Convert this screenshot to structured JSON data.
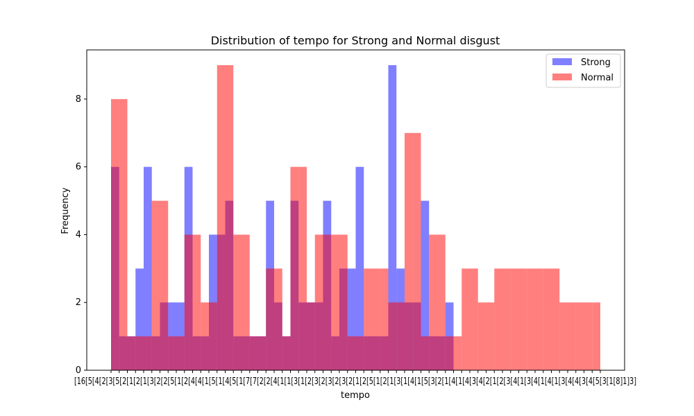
{
  "chart_data": {
    "type": "bar",
    "title": "Distribution of tempo for Strong and Normal disgust",
    "xlabel": "tempo",
    "ylabel": "Frequency",
    "ylim": [
      0,
      9.45
    ],
    "yticks": [
      0,
      2,
      4,
      6,
      8
    ],
    "xticklabel_text": "[16[5[4[2[3[5[2[1[2[1[3[2[2[5[1[2[4[4[1[5[1[4[5[1[7[7[2[2[4[1[1[3[1[2[3[2[3[2[3[2[1[2[5[1[2[1[3[1[4[1[5[3[2[1[4[1[4[3[4[2[1[2[3[4[1[3[4[1[4[1[3[4[4[3[4[5[3[1[8]1]3]",
    "legend": {
      "position": "upper-right",
      "entries": [
        "Strong",
        "Normal"
      ]
    },
    "grid": false,
    "bin_count": 60,
    "series": [
      {
        "name": "Strong",
        "color": "#0000ff",
        "opacity": 0.5,
        "values": [
          6,
          1,
          1,
          3,
          6,
          1,
          2,
          2,
          2,
          6,
          1,
          1,
          4,
          4,
          5,
          1,
          1,
          1,
          1,
          5,
          2,
          1,
          5,
          2,
          2,
          2,
          5,
          1,
          3,
          3,
          6,
          1,
          1,
          1,
          9,
          3,
          2,
          2,
          5,
          1,
          1,
          2
        ]
      },
      {
        "name": "Normal",
        "color": "#ff0000",
        "opacity": 0.5,
        "values": [
          8,
          8,
          1,
          1,
          1,
          5,
          5,
          1,
          1,
          4,
          4,
          2,
          2,
          9,
          9,
          4,
          4,
          1,
          1,
          3,
          3,
          1,
          6,
          6,
          2,
          4,
          4,
          4,
          4,
          1,
          1,
          3,
          3,
          3,
          2,
          2,
          7,
          7,
          1,
          4,
          4,
          1,
          1,
          3,
          3,
          2,
          2,
          3,
          3,
          3,
          3,
          3,
          3,
          3,
          3,
          2,
          2,
          2,
          2,
          2
        ]
      }
    ]
  }
}
